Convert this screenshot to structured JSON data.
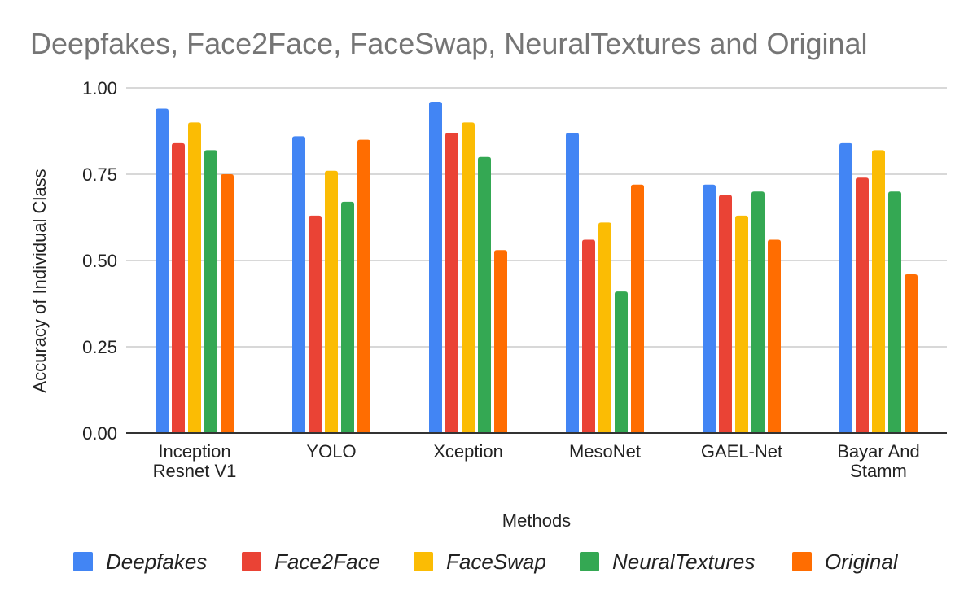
{
  "chart_data": {
    "type": "bar",
    "title": "Deepfakes, Face2Face, FaceSwap, NeuralTextures and Original",
    "xlabel": "Methods",
    "ylabel": "Accuracy of Individual Class",
    "ylim": [
      0,
      1
    ],
    "yticks": [
      "0.00",
      "0.25",
      "0.50",
      "0.75",
      "1.00"
    ],
    "grid": true,
    "legend_position": "bottom",
    "categories": [
      [
        "Inception",
        "Resnet V1"
      ],
      [
        "YOLO"
      ],
      [
        "Xception"
      ],
      [
        "MesoNet"
      ],
      [
        "GAEL-Net"
      ],
      [
        "Bayar And",
        "Stamm"
      ]
    ],
    "series": [
      {
        "name": "Deepfakes",
        "color": "#4285F4",
        "values": [
          0.94,
          0.86,
          0.96,
          0.87,
          0.72,
          0.84
        ]
      },
      {
        "name": "Face2Face",
        "color": "#EA4335",
        "values": [
          0.84,
          0.63,
          0.87,
          0.56,
          0.69,
          0.74
        ]
      },
      {
        "name": "FaceSwap",
        "color": "#FBBC04",
        "values": [
          0.9,
          0.76,
          0.9,
          0.61,
          0.63,
          0.82
        ]
      },
      {
        "name": "NeuralTextures",
        "color": "#34A853",
        "values": [
          0.82,
          0.67,
          0.8,
          0.41,
          0.7,
          0.7
        ]
      },
      {
        "name": "Original",
        "color": "#FF6D01",
        "values": [
          0.75,
          0.85,
          0.53,
          0.72,
          0.56,
          0.46
        ]
      }
    ]
  }
}
